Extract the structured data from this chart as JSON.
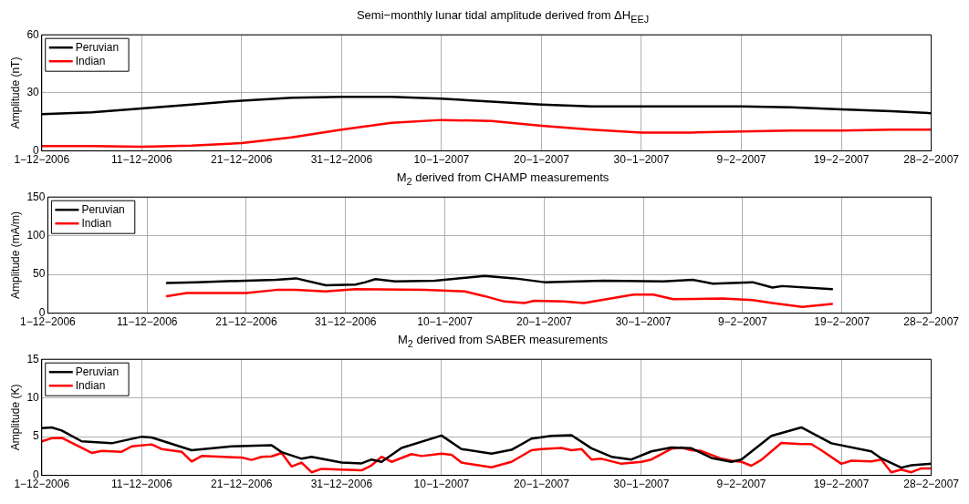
{
  "chart_data": [
    {
      "type": "line",
      "title": "Semi−monthly lunar tidal amplitude derived from ΔH$_{EEJ}$",
      "ylabel": "Amplitude (nT)",
      "xlim": [
        "2006-12-01",
        "2007-02-28"
      ],
      "xticks": [
        {
          "value": "2006-12-01",
          "label": "1−12−2006"
        },
        {
          "value": "2006-12-11",
          "label": "11−12−2006"
        },
        {
          "value": "2006-12-21",
          "label": "21−12−2006"
        },
        {
          "value": "2006-12-31",
          "label": "31−12−2006"
        },
        {
          "value": "2007-01-10",
          "label": "10−1−2007"
        },
        {
          "value": "2007-01-20",
          "label": "20−1−2007"
        },
        {
          "value": "2007-01-30",
          "label": "30−1−2007"
        },
        {
          "value": "2007-02-09",
          "label": "9−2−2007"
        },
        {
          "value": "2007-02-19",
          "label": "19−2−2007"
        },
        {
          "value": "2007-02-28",
          "label": "28−2−2007"
        }
      ],
      "ylim": [
        0,
        60
      ],
      "yticks": [
        0,
        30,
        60
      ],
      "grid": true,
      "legend": "top left",
      "marker": "none",
      "line_style": "solid",
      "series": [
        {
          "name": "Peruvian",
          "color": "#000000",
          "x": [
            "2006-12-01",
            "2006-12-06",
            "2006-12-11",
            "2006-12-16",
            "2006-12-21",
            "2006-12-26",
            "2006-12-31",
            "2007-01-05",
            "2007-01-10",
            "2007-01-15",
            "2007-01-20",
            "2007-01-25",
            "2007-01-30",
            "2007-02-04",
            "2007-02-09",
            "2007-02-14",
            "2007-02-19",
            "2007-02-24",
            "2007-02-28"
          ],
          "values": [
            19,
            20,
            22,
            24,
            26,
            27.5,
            28,
            28,
            27,
            25.5,
            24,
            23,
            23,
            23,
            23,
            22.5,
            21.5,
            20.5,
            19.5
          ]
        },
        {
          "name": "Indian",
          "color": "#ff0000",
          "x": [
            "2006-12-01",
            "2006-12-06",
            "2006-12-11",
            "2006-12-16",
            "2006-12-21",
            "2006-12-26",
            "2006-12-31",
            "2007-01-05",
            "2007-01-10",
            "2007-01-15",
            "2007-01-20",
            "2007-01-25",
            "2007-01-30",
            "2007-02-04",
            "2007-02-09",
            "2007-02-14",
            "2007-02-19",
            "2007-02-24",
            "2007-02-28"
          ],
          "values": [
            2.5,
            2.5,
            2.2,
            2.8,
            4,
            7,
            11,
            14.5,
            16,
            15.5,
            13,
            11,
            9.5,
            9.5,
            10,
            10.5,
            10.5,
            11,
            11
          ]
        }
      ]
    },
    {
      "type": "line",
      "title": "M$_{2}$ derived from CHAMP measurements",
      "ylabel": "Amplitude (mA/m)",
      "xlim": [
        "2006-12-01",
        "2007-02-28"
      ],
      "xticks": [
        {
          "value": "2006-12-01",
          "label": "1−12−2006"
        },
        {
          "value": "2006-12-11",
          "label": "11−12−2006"
        },
        {
          "value": "2006-12-21",
          "label": "21−12−2006"
        },
        {
          "value": "2006-12-31",
          "label": "31−12−2006"
        },
        {
          "value": "2007-01-10",
          "label": "10−1−2007"
        },
        {
          "value": "2007-01-20",
          "label": "20−1−2007"
        },
        {
          "value": "2007-01-30",
          "label": "30−1−2007"
        },
        {
          "value": "2007-02-09",
          "label": "9−2−2007"
        },
        {
          "value": "2007-02-19",
          "label": "19−2−2007"
        },
        {
          "value": "2007-02-28",
          "label": "28−2−2007"
        }
      ],
      "ylim": [
        0,
        150
      ],
      "yticks": [
        0,
        50,
        100,
        150
      ],
      "grid": true,
      "legend": "top left",
      "marker": "none",
      "line_style": "solid",
      "series": [
        {
          "name": "Peruvian",
          "color": "#000000",
          "x": [
            "2006-12-13",
            "2006-12-16",
            "2006-12-21",
            "2006-12-24",
            "2006-12-26",
            "2006-12-29",
            "2007-01-01",
            "2007-01-02",
            "2007-01-03",
            "2007-01-05",
            "2007-01-09",
            "2007-01-14",
            "2007-01-17",
            "2007-01-20",
            "2007-01-26",
            "2007-02-01",
            "2007-02-04",
            "2007-02-06",
            "2007-02-10",
            "2007-02-12",
            "2007-02-13",
            "2007-02-18"
          ],
          "values": [
            39,
            40,
            42,
            43,
            45,
            36,
            37,
            40,
            44,
            41,
            42,
            48,
            45,
            40,
            42,
            41,
            43,
            38,
            40,
            33,
            35,
            31
          ]
        },
        {
          "name": "Indian",
          "color": "#ff0000",
          "x": [
            "2006-12-13",
            "2006-12-15",
            "2006-12-21",
            "2006-12-24",
            "2006-12-26",
            "2006-12-29",
            "2007-01-01",
            "2007-01-08",
            "2007-01-12",
            "2007-01-14",
            "2007-01-16",
            "2007-01-18",
            "2007-01-19",
            "2007-01-22",
            "2007-01-24",
            "2007-01-29",
            "2007-01-31",
            "2007-02-02",
            "2007-02-07",
            "2007-02-10",
            "2007-02-12",
            "2007-02-15",
            "2007-02-18"
          ],
          "values": [
            22,
            26,
            26,
            30,
            30,
            28,
            31,
            30,
            28,
            22,
            15,
            13,
            16,
            15,
            13,
            24,
            24,
            18,
            19,
            17,
            13,
            8,
            12
          ]
        }
      ]
    },
    {
      "type": "line",
      "title": "M$_{2}$ derived from SABER measurements",
      "ylabel": "Amplitude (K)",
      "xlim": [
        "2006-12-01",
        "2007-02-28"
      ],
      "xticks": [
        {
          "value": "2006-12-01",
          "label": "1−12−2006"
        },
        {
          "value": "2006-12-11",
          "label": "11−12−2006"
        },
        {
          "value": "2006-12-21",
          "label": "21−12−2006"
        },
        {
          "value": "2006-12-31",
          "label": "31−12−2006"
        },
        {
          "value": "2007-01-10",
          "label": "10−1−2007"
        },
        {
          "value": "2007-01-20",
          "label": "20−1−2007"
        },
        {
          "value": "2007-01-30",
          "label": "30−1−2007"
        },
        {
          "value": "2007-02-09",
          "label": "9−2−2007"
        },
        {
          "value": "2007-02-19",
          "label": "19−2−2007"
        },
        {
          "value": "2007-02-28",
          "label": "28−2−2007"
        }
      ],
      "ylim": [
        0,
        15
      ],
      "yticks": [
        0,
        5,
        10,
        15
      ],
      "grid": true,
      "legend": "top left",
      "marker": "none",
      "line_style": "solid",
      "series": [
        {
          "name": "Peruvian",
          "color": "#000000",
          "x": [
            "2006-12-01",
            "2006-12-02",
            "2006-12-03",
            "2006-12-05",
            "2006-12-08",
            "2006-12-11",
            "2006-12-12",
            "2006-12-16",
            "2006-12-20",
            "2006-12-24",
            "2006-12-25",
            "2006-12-27",
            "2006-12-28",
            "2006-12-31",
            "2007-01-02",
            "2007-01-03",
            "2007-01-04",
            "2007-01-06",
            "2007-01-10",
            "2007-01-12",
            "2007-01-15",
            "2007-01-17",
            "2007-01-19",
            "2007-01-21",
            "2007-01-23",
            "2007-01-25",
            "2007-01-27",
            "2007-01-29",
            "2007-01-31",
            "2007-02-02",
            "2007-02-04",
            "2007-02-06",
            "2007-02-08",
            "2007-02-09",
            "2007-02-12",
            "2007-02-15",
            "2007-02-18",
            "2007-02-22",
            "2007-02-23",
            "2007-02-25",
            "2007-02-26",
            "2007-02-28"
          ],
          "values": [
            6.1,
            6.2,
            5.8,
            4.4,
            4.15,
            5.0,
            4.9,
            3.25,
            3.75,
            3.9,
            3.0,
            2.15,
            2.4,
            1.65,
            1.55,
            2.05,
            1.75,
            3.55,
            5.15,
            3.4,
            2.8,
            3.3,
            4.75,
            5.1,
            5.2,
            3.5,
            2.4,
            2.05,
            3.1,
            3.6,
            3.5,
            2.25,
            1.75,
            2.05,
            5.1,
            6.2,
            4.15,
            3.1,
            2.2,
            1.0,
            1.3,
            1.5
          ]
        },
        {
          "name": "Indian",
          "color": "#ff0000",
          "x": [
            "2006-12-01",
            "2006-12-02",
            "2006-12-03",
            "2006-12-06",
            "2006-12-07",
            "2006-12-09",
            "2006-12-10",
            "2006-12-12",
            "2006-12-13",
            "2006-12-15",
            "2006-12-16",
            "2006-12-17",
            "2006-12-21",
            "2006-12-22",
            "2006-12-23",
            "2006-12-24",
            "2006-12-25",
            "2006-12-26",
            "2006-12-27",
            "2006-12-28",
            "2006-12-29",
            "2006-12-31",
            "2007-01-02",
            "2007-01-03",
            "2007-01-04",
            "2007-01-05",
            "2007-01-07",
            "2007-01-08",
            "2007-01-10",
            "2007-01-11",
            "2007-01-12",
            "2007-01-15",
            "2007-01-17",
            "2007-01-19",
            "2007-01-20",
            "2007-01-22",
            "2007-01-23",
            "2007-01-24",
            "2007-01-25",
            "2007-01-26",
            "2007-01-28",
            "2007-01-30",
            "2007-01-31",
            "2007-02-02",
            "2007-02-03",
            "2007-02-04",
            "2007-02-05",
            "2007-02-07",
            "2007-02-08",
            "2007-02-09",
            "2007-02-10",
            "2007-02-11",
            "2007-02-13",
            "2007-02-15",
            "2007-02-16",
            "2007-02-17",
            "2007-02-19",
            "2007-02-20",
            "2007-02-22",
            "2007-02-23",
            "2007-02-24",
            "2007-02-25",
            "2007-02-26",
            "2007-02-27",
            "2007-02-28"
          ],
          "values": [
            4.4,
            4.8,
            4.85,
            2.9,
            3.15,
            3.05,
            3.75,
            4.0,
            3.4,
            3.05,
            1.8,
            2.5,
            2.3,
            2.0,
            2.4,
            2.45,
            2.9,
            1.15,
            1.65,
            0.4,
            0.85,
            0.75,
            0.65,
            1.3,
            2.4,
            1.75,
            2.75,
            2.5,
            2.8,
            2.65,
            1.65,
            1.05,
            1.75,
            3.25,
            3.4,
            3.55,
            3.25,
            3.4,
            2.05,
            2.15,
            1.5,
            1.75,
            2.05,
            3.45,
            3.6,
            3.25,
            3.15,
            2.15,
            1.9,
            1.75,
            1.25,
            2.0,
            4.2,
            4.05,
            4.05,
            3.25,
            1.5,
            1.9,
            1.8,
            2.05,
            0.4,
            0.75,
            0.4,
            0.9,
            0.9
          ]
        }
      ]
    }
  ]
}
